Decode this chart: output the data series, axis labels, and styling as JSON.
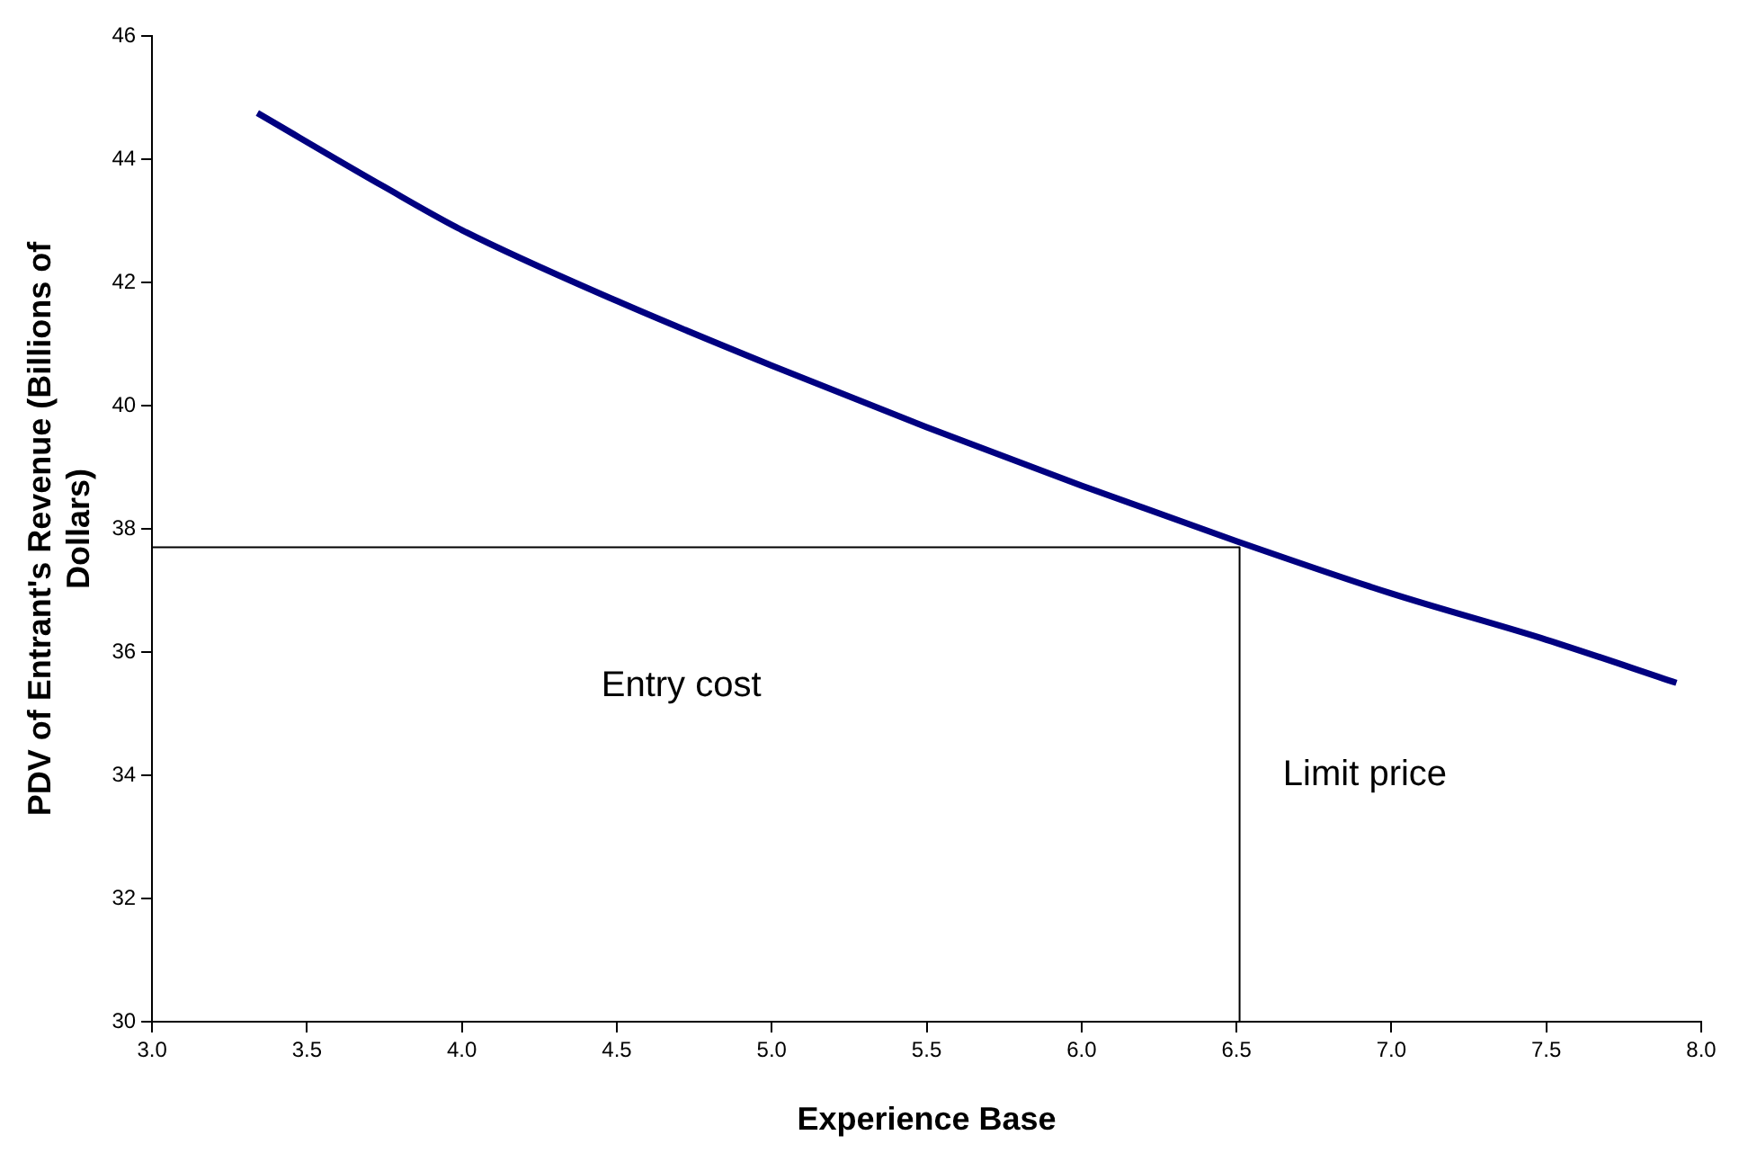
{
  "chart_data": {
    "type": "line",
    "xlabel": "Experience Base",
    "ylabel": "PDV of Entrant's Revenue (Billions of Dollars)",
    "xlim": [
      3.0,
      8.0
    ],
    "xticks": [
      {
        "value": 3,
        "label": "3.0"
      },
      {
        "value": 3.5,
        "label": "3.5"
      },
      {
        "value": 4,
        "label": "4.0"
      },
      {
        "value": 4.5,
        "label": "4.5"
      },
      {
        "value": 5,
        "label": "5.0"
      },
      {
        "value": 5.5,
        "label": "5.5"
      },
      {
        "value": 6,
        "label": "6.0"
      },
      {
        "value": 6.5,
        "label": "6.5"
      },
      {
        "value": 7,
        "label": "7.0"
      },
      {
        "value": 7.5,
        "label": "7.5"
      },
      {
        "value": 8,
        "label": "8.0"
      }
    ],
    "ylim": [
      30,
      46
    ],
    "yticks": [
      30,
      32,
      34,
      36,
      38,
      40,
      42,
      44,
      46
    ],
    "grid": false,
    "legend": false,
    "marker": "none",
    "series": [
      {
        "color": "#000080",
        "x": [
          3.34,
          3.75,
          4.0,
          4.5,
          5.0,
          5.5,
          6.0,
          6.5,
          7.0,
          7.5,
          7.92
        ],
        "values": [
          44.75,
          43.55,
          42.85,
          41.7,
          40.65,
          39.65,
          38.7,
          37.8,
          36.95,
          36.2,
          35.5
        ]
      },
      {
        "color": "#000000",
        "x": [
          3.0,
          6.51,
          6.51
        ],
        "values": [
          37.7,
          37.7,
          30
        ]
      }
    ],
    "annotations": [
      "Entry cost",
      "Limit price"
    ]
  }
}
